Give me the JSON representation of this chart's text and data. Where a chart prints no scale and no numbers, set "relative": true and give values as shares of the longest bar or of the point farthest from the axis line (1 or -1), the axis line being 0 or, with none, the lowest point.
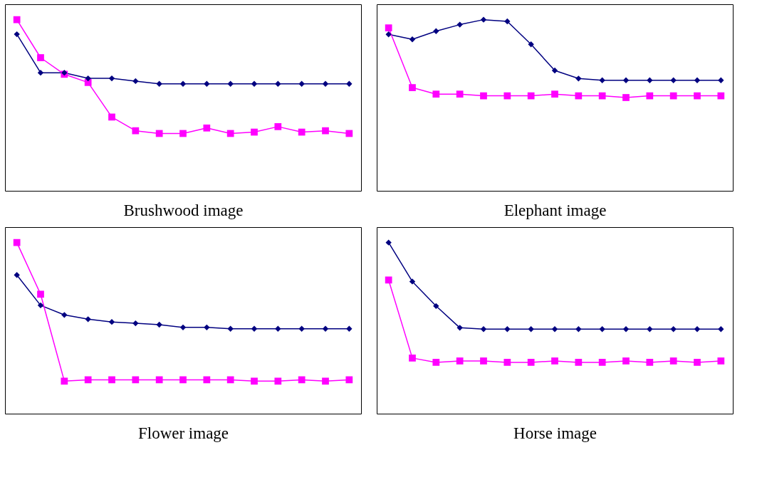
{
  "chart_data": [
    {
      "type": "line",
      "xlabel": "Brushwood image",
      "relative": true,
      "categories": [
        null,
        null,
        null,
        null,
        null,
        null,
        null,
        null,
        null,
        null,
        null,
        null,
        null,
        null,
        null
      ],
      "series": [
        {
          "color": "#000080",
          "marker": "diamond",
          "values": [
            0.915,
            0.69,
            0.69,
            0.657,
            0.657,
            0.641,
            0.625,
            0.625,
            0.625,
            0.625,
            0.625,
            0.625,
            0.625,
            0.625,
            0.625
          ]
        },
        {
          "color": "#ff00ff",
          "marker": "square",
          "values": [
            1,
            0.778,
            0.681,
            0.633,
            0.431,
            0.351,
            0.335,
            0.335,
            0.367,
            0.335,
            0.343,
            0.375,
            0.343,
            0.351,
            0.335
          ]
        }
      ]
    },
    {
      "type": "line",
      "xlabel": "Elephant image",
      "relative": true,
      "categories": [
        null,
        null,
        null,
        null,
        null,
        null,
        null,
        null,
        null,
        null,
        null,
        null,
        null,
        null,
        null
      ],
      "series": [
        {
          "color": "#000080",
          "marker": "diamond",
          "values": [
            0.914,
            0.885,
            0.933,
            0.971,
            1,
            0.99,
            0.856,
            0.703,
            0.656,
            0.646,
            0.646,
            0.646,
            0.646,
            0.646,
            0.646
          ]
        },
        {
          "color": "#ff00ff",
          "marker": "square",
          "values": [
            0.952,
            0.603,
            0.565,
            0.565,
            0.555,
            0.555,
            0.555,
            0.565,
            0.555,
            0.555,
            0.545,
            0.555,
            0.555,
            0.555,
            0.555
          ]
        }
      ]
    },
    {
      "type": "line",
      "xlabel": "Flower image",
      "relative": true,
      "categories": [
        null,
        null,
        null,
        null,
        null,
        null,
        null,
        null,
        null,
        null,
        null,
        null,
        null,
        null,
        null
      ],
      "series": [
        {
          "color": "#000080",
          "marker": "diamond",
          "values": [
            0.81,
            0.633,
            0.577,
            0.552,
            0.536,
            0.528,
            0.52,
            0.504,
            0.504,
            0.496,
            0.496,
            0.496,
            0.496,
            0.496,
            0.496
          ]
        },
        {
          "color": "#ff00ff",
          "marker": "square",
          "values": [
            1,
            0.698,
            0.19,
            0.198,
            0.198,
            0.198,
            0.198,
            0.198,
            0.198,
            0.198,
            0.19,
            0.19,
            0.198,
            0.19,
            0.198
          ]
        }
      ]
    },
    {
      "type": "line",
      "xlabel": "Horse image",
      "relative": true,
      "categories": [
        null,
        null,
        null,
        null,
        null,
        null,
        null,
        null,
        null,
        null,
        null,
        null,
        null,
        null,
        null
      ],
      "series": [
        {
          "color": "#000080",
          "marker": "diamond",
          "values": [
            1,
            0.772,
            0.629,
            0.502,
            0.494,
            0.494,
            0.494,
            0.494,
            0.494,
            0.494,
            0.494,
            0.494,
            0.494,
            0.494,
            0.494
          ]
        },
        {
          "color": "#ff00ff",
          "marker": "square",
          "values": [
            0.781,
            0.325,
            0.3,
            0.308,
            0.308,
            0.3,
            0.3,
            0.308,
            0.3,
            0.3,
            0.308,
            0.3,
            0.308,
            0.3,
            0.308
          ]
        }
      ]
    }
  ]
}
